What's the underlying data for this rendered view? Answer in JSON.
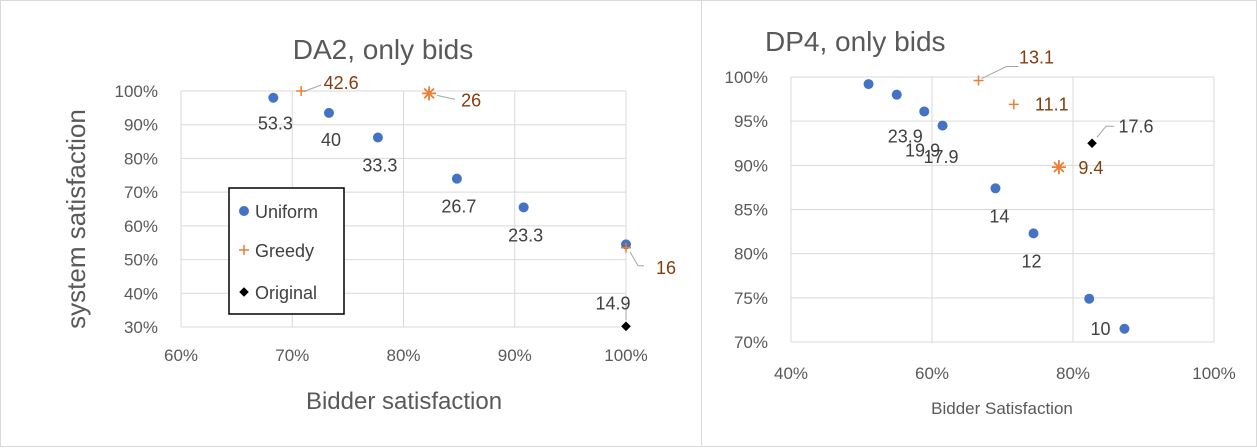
{
  "chart_data": [
    {
      "type": "scatter",
      "title": "DA2, only bids",
      "xlabel": "Bidder satisfaction",
      "ylabel": "system satisfaction",
      "xlim": [
        0.6,
        1.0
      ],
      "ylim": [
        0.3,
        1.0
      ],
      "x_ticks": [
        "60%",
        "70%",
        "80%",
        "90%",
        "100%"
      ],
      "y_ticks": [
        "30%",
        "40%",
        "50%",
        "60%",
        "70%",
        "80%",
        "90%",
        "100%"
      ],
      "grid": true,
      "legend_position": "center-left (inside plot, boxed)",
      "legend": [
        "Uniform",
        "Greedy",
        "Original"
      ],
      "series": [
        {
          "name": "Uniform",
          "marker": "circle",
          "color": "#4472C4",
          "points": [
            {
              "x": 0.683,
              "y": 0.98,
              "label": "53.3"
            },
            {
              "x": 0.733,
              "y": 0.935,
              "label": "40"
            },
            {
              "x": 0.777,
              "y": 0.862,
              "label": "33.3"
            },
            {
              "x": 0.848,
              "y": 0.74,
              "label": "26.7"
            },
            {
              "x": 0.908,
              "y": 0.655,
              "label": "23.3"
            },
            {
              "x": 1.0,
              "y": 0.545,
              "label": ""
            }
          ]
        },
        {
          "name": "Greedy",
          "marker": "plus",
          "color": "#ED7D31",
          "label_color": "#843C0C",
          "points": [
            {
              "x": 0.708,
              "y": 1.0,
              "label": "42.6"
            },
            {
              "x": 0.823,
              "y": 0.993,
              "label": "26"
            },
            {
              "x": 1.0,
              "y": 0.535,
              "label": "16"
            }
          ]
        },
        {
          "name": "Original",
          "marker": "diamond",
          "color": "#000000",
          "points": [
            {
              "x": 1.0,
              "y": 0.302,
              "label": "14.9"
            }
          ]
        }
      ]
    },
    {
      "type": "scatter",
      "title": "DP4, only bids",
      "xlabel": "Bidder Satisfaction",
      "ylabel": "",
      "xlim": [
        0.4,
        1.0
      ],
      "ylim": [
        0.7,
        1.0
      ],
      "x_ticks": [
        "40%",
        "60%",
        "80%",
        "100%"
      ],
      "y_ticks": [
        "70%",
        "75%",
        "80%",
        "85%",
        "90%",
        "95%",
        "100%"
      ],
      "grid": true,
      "series": [
        {
          "name": "Uniform",
          "marker": "circle",
          "color": "#4472C4",
          "points": [
            {
              "x": 0.51,
              "y": 0.992,
              "label": ""
            },
            {
              "x": 0.55,
              "y": 0.98,
              "label": ""
            },
            {
              "x": 0.589,
              "y": 0.961,
              "label": "23.9"
            },
            {
              "x": 0.615,
              "y": 0.945,
              "label": "19.9"
            },
            {
              "x": 0.69,
              "y": 0.874,
              "label": "14"
            },
            {
              "x": 0.744,
              "y": 0.823,
              "label": "12"
            },
            {
              "x": 0.823,
              "y": 0.749,
              "label": ""
            },
            {
              "x": 0.873,
              "y": 0.715,
              "label": "10"
            }
          ],
          "extra_labels": [
            "17.9"
          ]
        },
        {
          "name": "Greedy",
          "marker": "plus",
          "color": "#ED7D31",
          "label_color": "#843C0C",
          "points": [
            {
              "x": 0.666,
              "y": 0.996,
              "label": "13.1"
            },
            {
              "x": 0.716,
              "y": 0.969,
              "label": "11.1"
            },
            {
              "x": 0.78,
              "y": 0.898,
              "label": "9.4"
            }
          ]
        },
        {
          "name": "Original",
          "marker": "diamond",
          "color": "#000000",
          "points": [
            {
              "x": 0.827,
              "y": 0.925,
              "label": "17.6"
            }
          ]
        }
      ]
    }
  ]
}
